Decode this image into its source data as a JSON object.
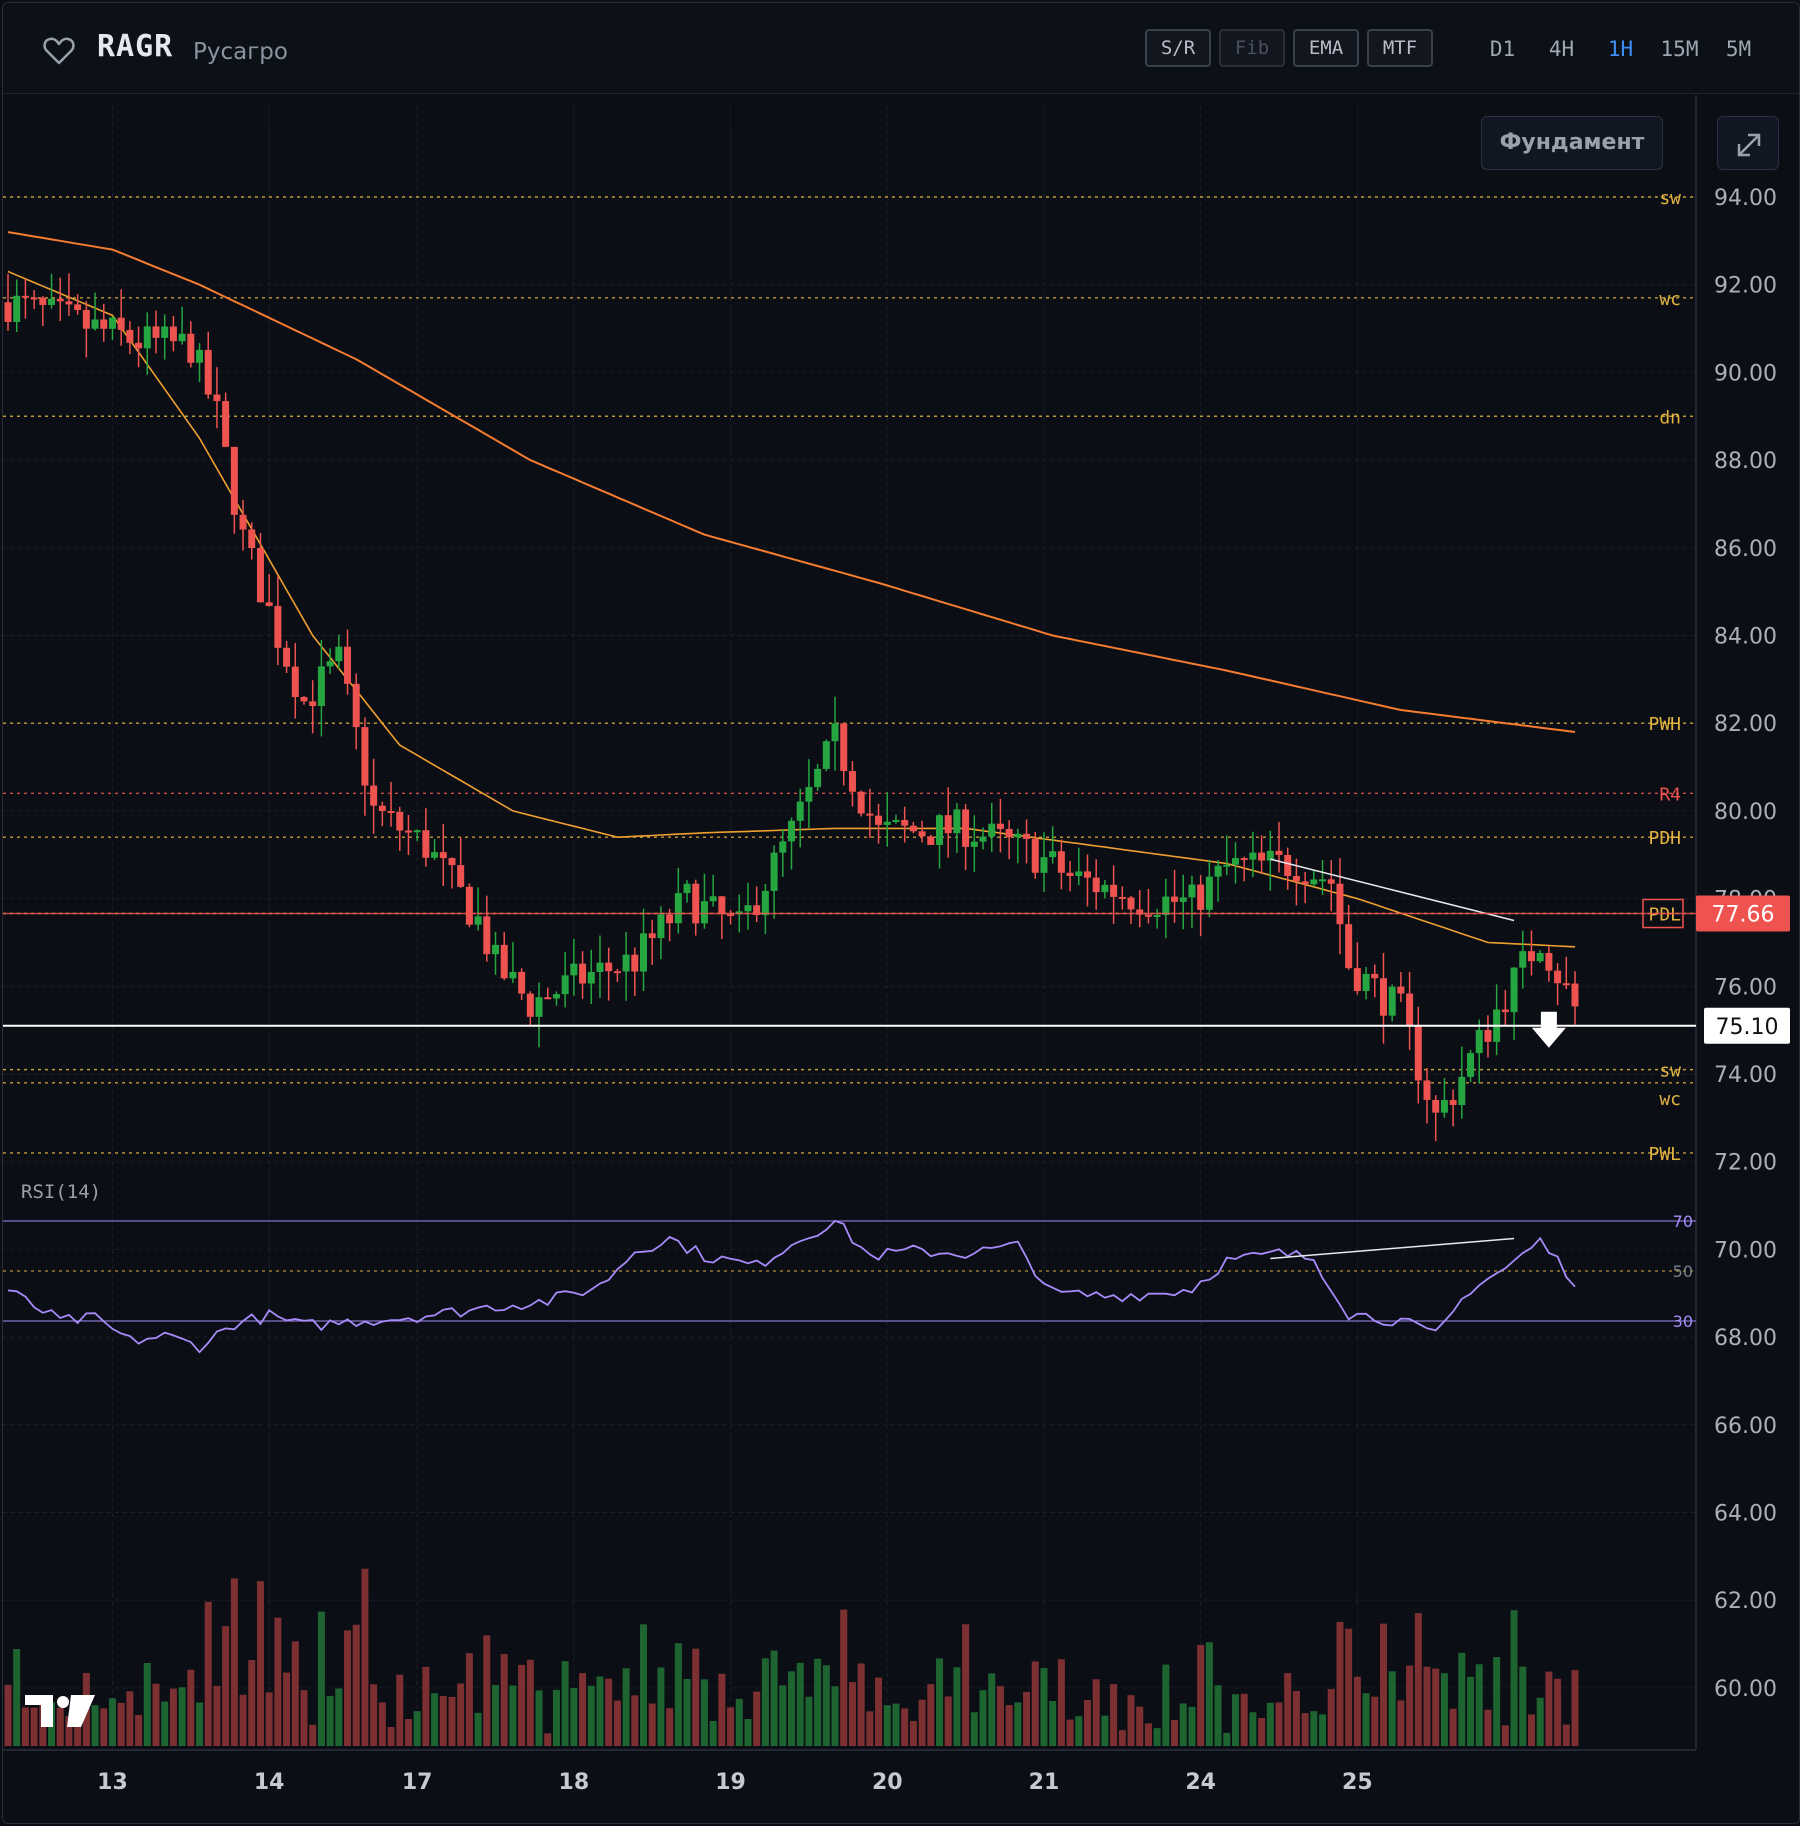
{
  "header": {
    "ticker": "RAGR",
    "company": "Русагро",
    "tools": [
      "S/R",
      "Fib",
      "EMA",
      "MTF"
    ],
    "timeframes": [
      "D1",
      "4H",
      "1H",
      "15M",
      "5M"
    ],
    "active_timeframe": "1H"
  },
  "buttons": {
    "fundamentals": "Фундамент"
  },
  "icons": {
    "favorite": "heart-icon",
    "expand": "expand-icon",
    "logo": "tradingview-logo",
    "signal": "down-arrow-icon"
  },
  "colors": {
    "up": "#26a641",
    "down": "#ef5350",
    "ema_fast": "#f0a030",
    "ema_slow": "#f57c30",
    "rsi": "#a78bfa",
    "level": "#e3b341",
    "r4": "#ef5350",
    "last": "#ef5350"
  },
  "chart_data": {
    "type": "candlestick",
    "ylim": [
      59.0,
      96.0
    ],
    "y_ticks": [
      94,
      92,
      90,
      88,
      86,
      84,
      82,
      80,
      78,
      76,
      74,
      72,
      70,
      68,
      66,
      64,
      62,
      60
    ],
    "y_tick_labels": [
      "94.00",
      "92.00",
      "90.00",
      "88.00",
      "86.00",
      "84.00",
      "82.00",
      "80.00",
      "78.00",
      "76.00",
      "74.00",
      "72.00",
      "70.00",
      "68.00",
      "66.00",
      "64.00",
      "62.00",
      "60.00"
    ],
    "x_labels": [
      "13",
      "14",
      "17",
      "18",
      "19",
      "20",
      "21",
      "24",
      "25"
    ],
    "levels": [
      {
        "label": "sw",
        "price": 94.0
      },
      {
        "label": "wc",
        "price": 91.7
      },
      {
        "label": "dn",
        "price": 89.0
      },
      {
        "label": "PWH",
        "price": 82.0
      },
      {
        "label": "R4",
        "price": 80.4
      },
      {
        "label": "PDH",
        "price": 79.4
      },
      {
        "label": "PDL",
        "price": 77.66
      },
      {
        "label": "sw",
        "price": 74.1
      },
      {
        "label": "wc",
        "price": 73.8
      },
      {
        "label": "PWL",
        "price": 72.2
      }
    ],
    "last_price": "77.66",
    "signal_price": "75.10",
    "ohlc_keypoints": [
      [
        0,
        91.6
      ],
      [
        15,
        90.7
      ],
      [
        21,
        90.6
      ],
      [
        24,
        89.0
      ],
      [
        27,
        86.2
      ],
      [
        31,
        84.0
      ],
      [
        34,
        82.5
      ],
      [
        38,
        83.4
      ],
      [
        42,
        80.0
      ],
      [
        48,
        79.2
      ],
      [
        54,
        77.5
      ],
      [
        56,
        76.5
      ],
      [
        60,
        75.6
      ],
      [
        66,
        76.2
      ],
      [
        72,
        76.6
      ],
      [
        78,
        78.0
      ],
      [
        84,
        77.3
      ],
      [
        90,
        79.5
      ],
      [
        95,
        81.6
      ],
      [
        100,
        79.5
      ],
      [
        110,
        79.6
      ],
      [
        118,
        79.0
      ],
      [
        122,
        78.5
      ],
      [
        130,
        78.0
      ],
      [
        136,
        77.9
      ],
      [
        140,
        78.7
      ],
      [
        148,
        78.8
      ],
      [
        152,
        78.4
      ],
      [
        154,
        76.5
      ],
      [
        160,
        75.4
      ],
      [
        164,
        73.0
      ],
      [
        166,
        73.6
      ],
      [
        172,
        75.8
      ],
      [
        176,
        77.1
      ],
      [
        180,
        75.5
      ]
    ],
    "ema_fast": [
      [
        0,
        92.3
      ],
      [
        12,
        91.3
      ],
      [
        22,
        88.5
      ],
      [
        35,
        84.0
      ],
      [
        45,
        81.5
      ],
      [
        58,
        80.0
      ],
      [
        70,
        79.4
      ],
      [
        80,
        79.5
      ],
      [
        95,
        79.6
      ],
      [
        110,
        79.6
      ],
      [
        125,
        79.2
      ],
      [
        140,
        78.8
      ],
      [
        155,
        78.0
      ],
      [
        170,
        77.0
      ],
      [
        180,
        76.9
      ]
    ],
    "ema_slow": [
      [
        0,
        93.2
      ],
      [
        12,
        92.8
      ],
      [
        22,
        92.0
      ],
      [
        40,
        90.3
      ],
      [
        60,
        88.0
      ],
      [
        80,
        86.3
      ],
      [
        100,
        85.2
      ],
      [
        120,
        84.0
      ],
      [
        140,
        83.2
      ],
      [
        160,
        82.3
      ],
      [
        180,
        81.8
      ]
    ],
    "rsi": {
      "label": "RSI(14)",
      "levels": [
        70,
        50,
        30
      ],
      "level_labels": [
        "70",
        "50",
        "30"
      ],
      "keypoints": [
        [
          0,
          42
        ],
        [
          6,
          30
        ],
        [
          10,
          31
        ],
        [
          14,
          22
        ],
        [
          18,
          24
        ],
        [
          22,
          20
        ],
        [
          26,
          29
        ],
        [
          30,
          32
        ],
        [
          34,
          28
        ],
        [
          40,
          30
        ],
        [
          44,
          31
        ],
        [
          50,
          33
        ],
        [
          56,
          36
        ],
        [
          62,
          38
        ],
        [
          68,
          44
        ],
        [
          72,
          58
        ],
        [
          76,
          63
        ],
        [
          80,
          56
        ],
        [
          86,
          52
        ],
        [
          90,
          61
        ],
        [
          95,
          70
        ],
        [
          99,
          56
        ],
        [
          104,
          58
        ],
        [
          110,
          57
        ],
        [
          116,
          60
        ],
        [
          120,
          41
        ],
        [
          126,
          40
        ],
        [
          132,
          41
        ],
        [
          136,
          43
        ],
        [
          140,
          54
        ],
        [
          146,
          57
        ],
        [
          150,
          55
        ],
        [
          154,
          33
        ],
        [
          160,
          30
        ],
        [
          164,
          24
        ],
        [
          168,
          43
        ],
        [
          172,
          51
        ],
        [
          176,
          62
        ],
        [
          180,
          46
        ]
      ]
    },
    "divergence": {
      "price_from": [
        145,
        78.9
      ],
      "price_to": [
        173,
        77.5
      ],
      "rsi_from": [
        145,
        55
      ],
      "rsi_to": [
        173,
        63
      ]
    },
    "volume_bars": 180
  }
}
